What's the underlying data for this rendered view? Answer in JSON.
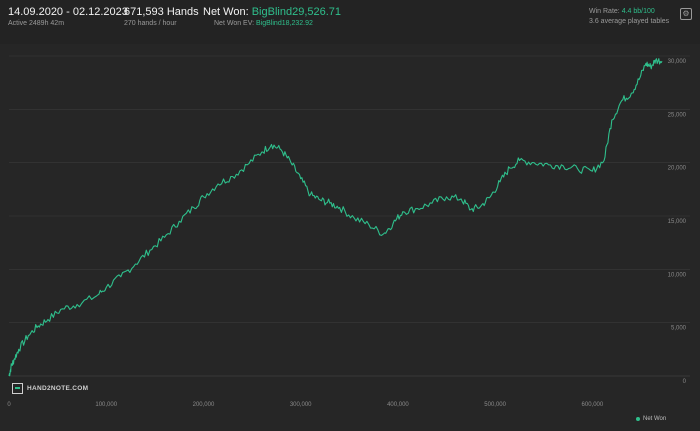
{
  "header": {
    "date_range": "14.09.2020 - 02.12.2023",
    "active": "Active 2489h 42m",
    "hands": "671,593 Hands",
    "hands_rate": "270 hands / hour",
    "net_won_label": "Net Won:",
    "net_won_value": "BigBlind29,526.71",
    "ev_label": "Net Won  EV:",
    "ev_value": "BigBlind18,232.92",
    "win_rate_label": "Win Rate:",
    "win_rate_value": "4.4 bb/100",
    "tables": "3.6 average played tables",
    "settings_icon": "gear-icon"
  },
  "logo": {
    "text": "HAND2NOTE.COM"
  },
  "colors": {
    "line": "#2fbf8c",
    "grid": "#3a3a3a",
    "bg": "#262626"
  },
  "chart_data": {
    "type": "line",
    "title": "",
    "xlabel": "",
    "ylabel": "",
    "xlim": [
      0,
      671593
    ],
    "ylim": [
      0,
      30000
    ],
    "grid": true,
    "legend": "bottom-right",
    "x_ticks": [
      "0",
      "100,000",
      "200,000",
      "300,000",
      "400,000",
      "500,000",
      "600,000"
    ],
    "x_tick_values": [
      0,
      100000,
      200000,
      300000,
      400000,
      500000,
      600000
    ],
    "y_ticks": [
      "0",
      "5,000",
      "10,000",
      "15,000",
      "20,000",
      "25,000",
      "30,000"
    ],
    "y_tick_values": [
      0,
      5000,
      10000,
      15000,
      20000,
      25000,
      30000
    ],
    "series": [
      {
        "name": "Net Won",
        "x": [
          0,
          2000,
          5000,
          10000,
          20000,
          30000,
          40000,
          55000,
          70000,
          90000,
          100000,
          115000,
          130000,
          145000,
          160000,
          175000,
          190000,
          200000,
          215000,
          230000,
          245000,
          260000,
          270000,
          280000,
          290000,
          300000,
          310000,
          320000,
          330000,
          340000,
          355000,
          370000,
          385000,
          395000,
          405000,
          420000,
          435000,
          450000,
          465000,
          475000,
          485000,
          495000,
          505000,
          515000,
          525000,
          540000,
          555000,
          570000,
          585000,
          600000,
          612000,
          620000,
          630000,
          640000,
          648000,
          655000,
          660000,
          665000,
          671593
        ],
        "values": [
          0,
          800,
          1500,
          2500,
          3800,
          4700,
          5300,
          6300,
          6700,
          7500,
          8300,
          9300,
          10500,
          11800,
          13000,
          14500,
          15800,
          16800,
          18000,
          18700,
          19800,
          21000,
          21700,
          21200,
          20000,
          18500,
          17000,
          16500,
          16200,
          15800,
          14800,
          14200,
          13300,
          14300,
          15400,
          15700,
          16200,
          16800,
          16600,
          15600,
          15900,
          16800,
          18200,
          19500,
          20200,
          20000,
          19800,
          19700,
          19400,
          19200,
          20200,
          24000,
          25800,
          26500,
          27800,
          29300,
          29000,
          29600,
          29526
        ]
      }
    ]
  },
  "legend": {
    "label": "Net Won"
  }
}
